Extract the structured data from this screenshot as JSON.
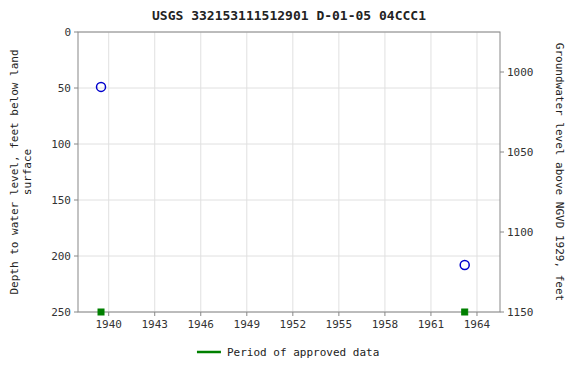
{
  "chart_data": {
    "type": "scatter",
    "title": "USGS 332153111512901 D-01-05 04CCC1",
    "ylabel": "Depth to water level, feet below land\nsurface",
    "y2label": "Groundwater level above NGVD 1929, feet",
    "x": [
      1939.5,
      1963.2
    ],
    "xlim": [
      1938,
      1965.5
    ],
    "xticks": [
      1940,
      1943,
      1946,
      1949,
      1952,
      1955,
      1958,
      1961,
      1964
    ],
    "ylim": [
      250,
      0
    ],
    "yticks": [
      0,
      50,
      100,
      150,
      200,
      250
    ],
    "y2lim": [
      1150,
      975
    ],
    "y2ticks": [
      1150,
      1100,
      1050,
      1000
    ],
    "grid": true,
    "legend": "bottom",
    "series": [
      {
        "values": [
          49,
          208
        ],
        "color": "#0000cc",
        "marker": "circle"
      },
      {
        "name": "Period of approved data",
        "values": [
          250,
          250
        ],
        "color": "#008000",
        "marker": "square"
      }
    ]
  }
}
